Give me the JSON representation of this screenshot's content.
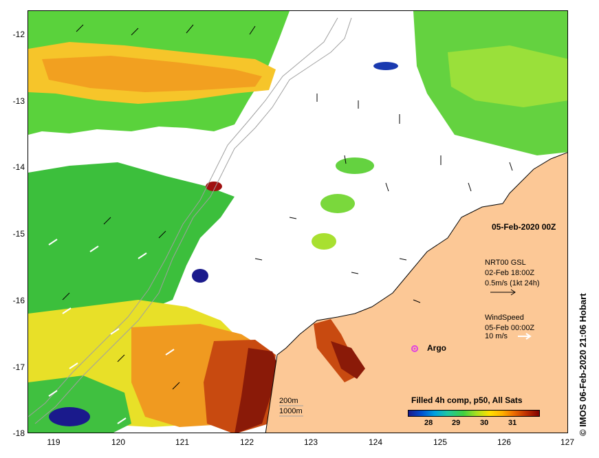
{
  "map": {
    "y_ticks": [
      "-12",
      "-13",
      "-14",
      "-15",
      "-16",
      "-17",
      "-18"
    ],
    "x_ticks": [
      "119",
      "120",
      "121",
      "122",
      "123",
      "124",
      "125",
      "126",
      "127"
    ],
    "date_label": "05-Feb-2020 00Z",
    "current_legend": {
      "line1": "NRT00 GSL",
      "line2": "02-Feb 18:00Z",
      "line3": "0.5m/s (1kt 24h)"
    },
    "wind_legend": {
      "line1": "WindSpeed",
      "line2": "05-Feb 00:00Z",
      "line3": "10 m/s"
    },
    "argo_label": "Argo",
    "isobath_200": "200m",
    "isobath_1000": "1000m",
    "colorbar": {
      "title": "Filled 4h comp, p50, All Sats",
      "labels": [
        "28",
        "29",
        "30",
        "31"
      ]
    },
    "credit": "© IMOS 06-Feb-2020 21:06 Hobart",
    "colors": {
      "land": "#fcc896",
      "argo_marker": "#e040e0",
      "coast": "#000000",
      "isobath": "#a0a0a0"
    }
  }
}
